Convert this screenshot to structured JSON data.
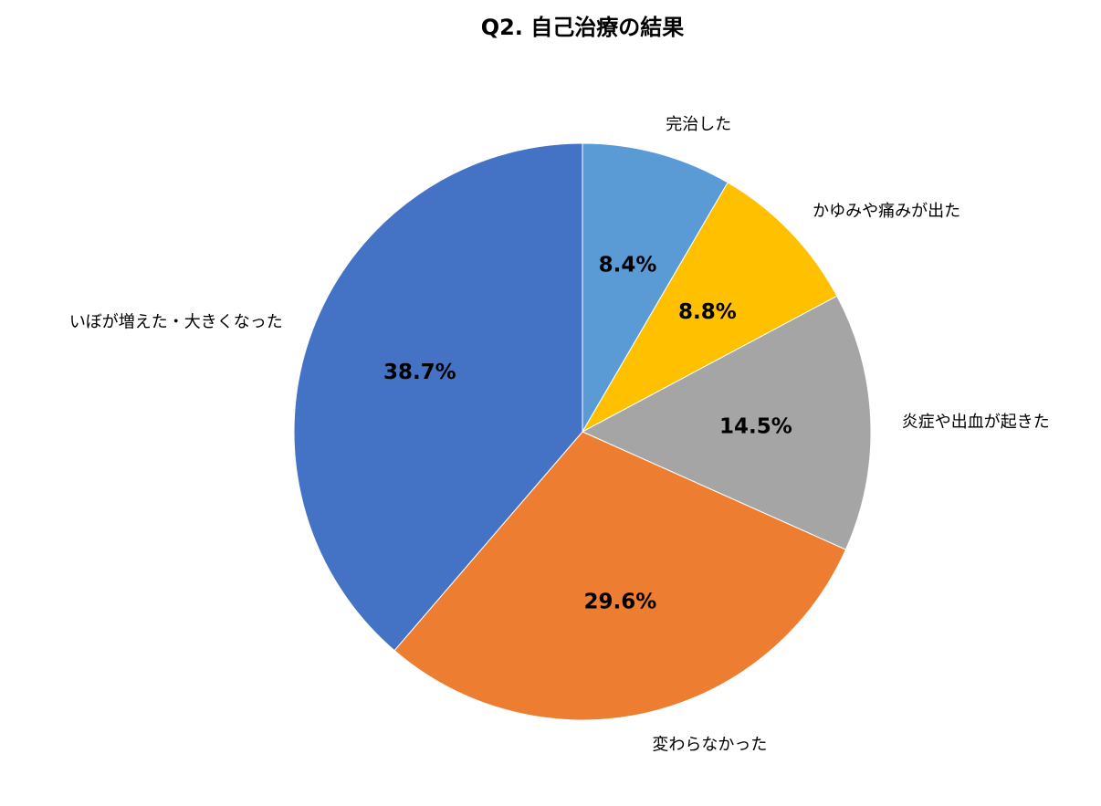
{
  "chart_data": {
    "type": "pie",
    "title": "Q2. 自己治療の結果",
    "start_angle": "top, clockwise",
    "slices": [
      {
        "label": "完治した",
        "value": 8.4,
        "display": "8.4%",
        "color": "#5B9BD5"
      },
      {
        "label": "かゆみや痛みが出た",
        "value": 8.8,
        "display": "8.8%",
        "color": "#FFC000"
      },
      {
        "label": "炎症や出血が起きた",
        "value": 14.5,
        "display": "14.5%",
        "color": "#A5A5A5"
      },
      {
        "label": "変わらなかった",
        "value": 29.6,
        "display": "29.6%",
        "color": "#ED7D31"
      },
      {
        "label": "いぼが増えた・大きくなった",
        "value": 38.7,
        "display": "38.7%",
        "color": "#4472C4"
      }
    ],
    "legend": "none (category labels outside slices)"
  }
}
